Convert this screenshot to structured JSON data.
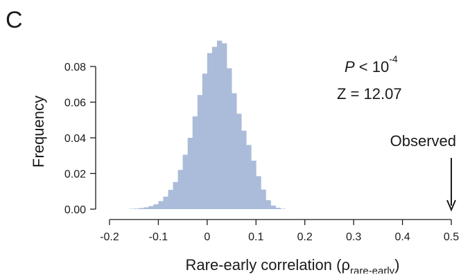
{
  "panel_label": "C",
  "chart_data": {
    "type": "bar",
    "xlabel": "Rare-early correlation (ρ",
    "xlabel_sub": "rare-early",
    "xlabel_end": ")",
    "ylabel": "Frequency",
    "xlim": [
      -0.2,
      0.5
    ],
    "ylim": [
      0,
      0.08
    ],
    "xticks": [
      -0.2,
      -0.1,
      0,
      0.1,
      0.2,
      0.3,
      0.4,
      0.5
    ],
    "xtick_labels": [
      "-0.2",
      "-0.1",
      "0",
      "0.1",
      "0.2",
      "0.3",
      "0.4",
      "0.5"
    ],
    "yticks": [
      0,
      0.02,
      0.04,
      0.06,
      0.08
    ],
    "ytick_labels": [
      "0.00",
      "0.02",
      "0.04",
      "0.06",
      "0.08"
    ],
    "bar_color": "#aabcd9",
    "bin_width": 0.01,
    "bin_starts": [
      -0.16,
      -0.15,
      -0.14,
      -0.13,
      -0.12,
      -0.11,
      -0.1,
      -0.09,
      -0.08,
      -0.07,
      -0.06,
      -0.05,
      -0.04,
      -0.03,
      -0.02,
      -0.01,
      0.0,
      0.01,
      0.02,
      0.03,
      0.04,
      0.05,
      0.06,
      0.07,
      0.08,
      0.09,
      0.1,
      0.11,
      0.12,
      0.13,
      0.14,
      0.15
    ],
    "values": [
      0.0002,
      0.0003,
      0.0006,
      0.001,
      0.0017,
      0.0027,
      0.0045,
      0.007,
      0.0108,
      0.0152,
      0.022,
      0.0305,
      0.04,
      0.052,
      0.064,
      0.076,
      0.0875,
      0.091,
      0.0945,
      0.093,
      0.079,
      0.065,
      0.0535,
      0.044,
      0.036,
      0.0272,
      0.0185,
      0.011,
      0.005,
      0.002,
      0.0008,
      0.0002
    ],
    "annotations": {
      "p_label": "P",
      "p_text": " < 10",
      "p_exponent": "-4",
      "z_text": "Z = 12.07",
      "observed_label": "Observed",
      "observed_x": 0.5
    }
  }
}
